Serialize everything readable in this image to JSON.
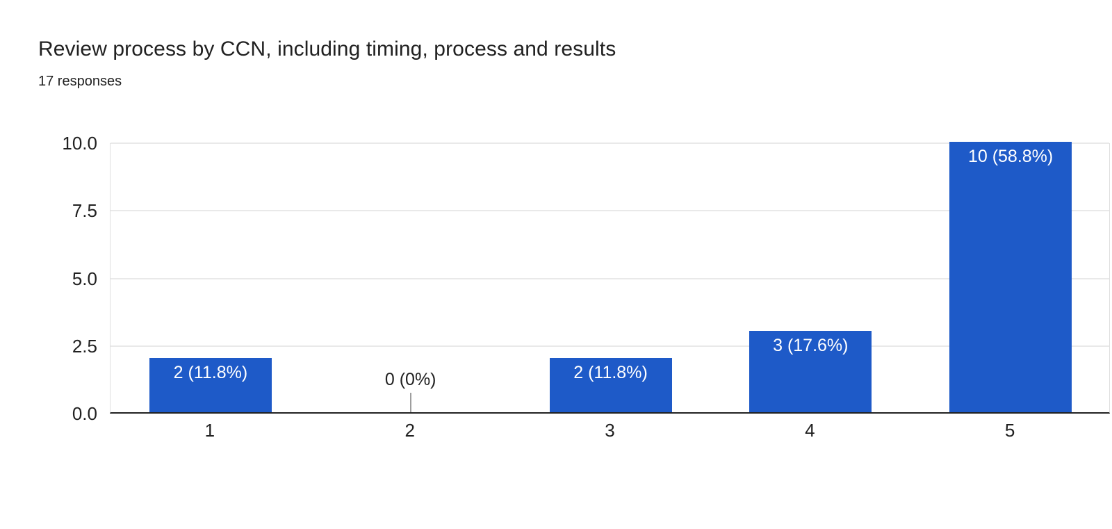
{
  "header": {
    "title": "Review process by CCN, including timing, process and results",
    "responses": "17 responses"
  },
  "chart_data": {
    "type": "bar",
    "title": "Review process by CCN, including timing, process and results",
    "subtitle": "17 responses",
    "categories": [
      "1",
      "2",
      "3",
      "4",
      "5"
    ],
    "values": [
      2,
      0,
      2,
      3,
      10
    ],
    "bar_labels": [
      "2 (11.8%)",
      "0 (0%)",
      "2 (11.8%)",
      "3 (17.6%)",
      "10 (58.8%)"
    ],
    "xlabel": "",
    "ylabel": "",
    "ylim": [
      0,
      10
    ],
    "yticks": [
      0,
      2.5,
      5,
      7.5,
      10
    ],
    "ytick_labels": [
      "0.0",
      "2.5",
      "5.0",
      "7.5",
      "10.0"
    ],
    "grid": "horizontal",
    "legend": "none",
    "colors": {
      "bar": "#1e5ac8",
      "bar_label_text": "#ffffff",
      "zero_label_text": "#212121",
      "zero_stem": "#9e9e9e",
      "gridline": "#e9e9e9",
      "axis_line": "#212121",
      "plot_frame": "#e0e0e0",
      "tick_label": "#212121",
      "title_text": "#212121"
    }
  }
}
